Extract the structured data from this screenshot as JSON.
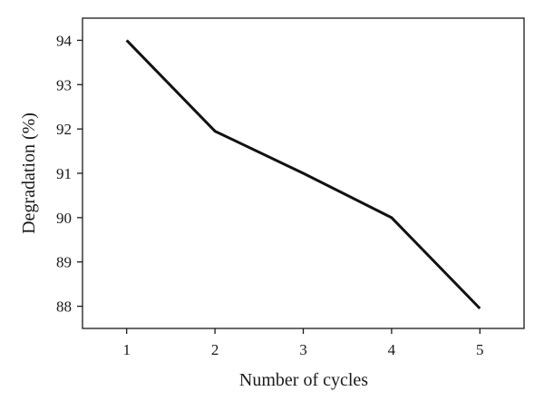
{
  "chart_data": {
    "type": "line",
    "title": "",
    "xlabel": "Number of cycles",
    "ylabel": "Degradation (%)",
    "x": [
      1,
      2,
      3,
      4,
      5
    ],
    "series": [
      {
        "values": [
          94,
          91.95,
          91.0,
          90.0,
          87.95
        ]
      }
    ],
    "xticks": [
      1,
      2,
      3,
      4,
      5
    ],
    "yticks": [
      88,
      89,
      90,
      91,
      92,
      93,
      94
    ],
    "xlim": [
      0.5,
      5.5
    ],
    "ylim": [
      87.5,
      94.5
    ],
    "grid": false,
    "legend": "none",
    "line_color": "#111111"
  }
}
